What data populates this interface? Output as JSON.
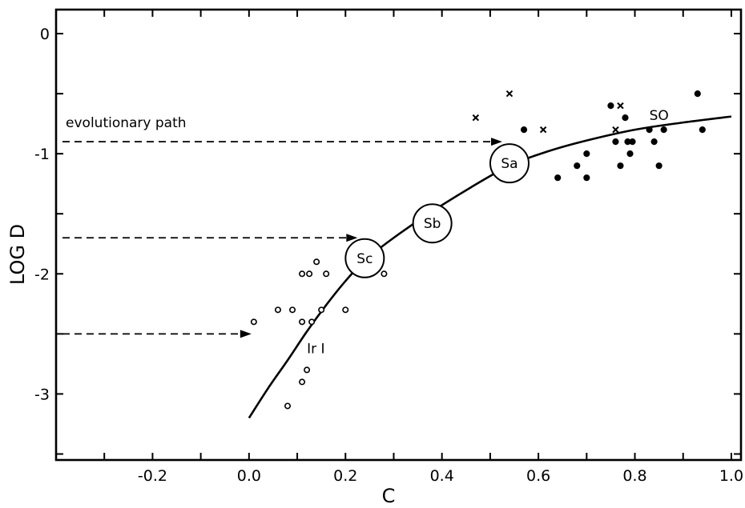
{
  "chart_data": {
    "type": "scatter",
    "xlabel": "C",
    "ylabel": "LOG D",
    "xlim": [
      -0.4,
      1.02
    ],
    "ylim": [
      -3.55,
      0.2
    ],
    "x_ticks": [
      -0.2,
      0.0,
      0.2,
      0.4,
      0.6,
      0.8,
      1.0
    ],
    "x_tick_labels": [
      "-0.2",
      "0.0",
      "0.2",
      "0.4",
      "0.6",
      "0.8",
      "1.0"
    ],
    "y_ticks": [
      0,
      -1,
      -2,
      -3
    ],
    "y_tick_labels": [
      "0",
      "-1",
      "-2",
      "-3"
    ],
    "grid": false,
    "series": [
      {
        "marker": "open-circle",
        "points": [
          {
            "x": 0.01,
            "y": -2.4
          },
          {
            "x": 0.06,
            "y": -2.3
          },
          {
            "x": 0.09,
            "y": -2.3
          },
          {
            "x": 0.11,
            "y": -2.0
          },
          {
            "x": 0.125,
            "y": -2.0
          },
          {
            "x": 0.14,
            "y": -1.9
          },
          {
            "x": 0.16,
            "y": -2.0
          },
          {
            "x": 0.11,
            "y": -2.4
          },
          {
            "x": 0.13,
            "y": -2.4
          },
          {
            "x": 0.15,
            "y": -2.3
          },
          {
            "x": 0.2,
            "y": -2.3
          },
          {
            "x": 0.28,
            "y": -2.0
          },
          {
            "x": 0.12,
            "y": -2.8
          },
          {
            "x": 0.11,
            "y": -2.9
          },
          {
            "x": 0.08,
            "y": -3.1
          }
        ]
      },
      {
        "marker": "filled-circle",
        "points": [
          {
            "x": 0.57,
            "y": -0.8
          },
          {
            "x": 0.64,
            "y": -1.2
          },
          {
            "x": 0.68,
            "y": -1.1
          },
          {
            "x": 0.7,
            "y": -1.0
          },
          {
            "x": 0.7,
            "y": -1.2
          },
          {
            "x": 0.75,
            "y": -0.6
          },
          {
            "x": 0.76,
            "y": -0.9
          },
          {
            "x": 0.77,
            "y": -1.1
          },
          {
            "x": 0.78,
            "y": -0.7
          },
          {
            "x": 0.785,
            "y": -0.9
          },
          {
            "x": 0.795,
            "y": -0.9
          },
          {
            "x": 0.79,
            "y": -1.0
          },
          {
            "x": 0.83,
            "y": -0.8
          },
          {
            "x": 0.84,
            "y": -0.9
          },
          {
            "x": 0.85,
            "y": -1.1
          },
          {
            "x": 0.86,
            "y": -0.8
          },
          {
            "x": 0.93,
            "y": -0.5
          },
          {
            "x": 0.94,
            "y": -0.8
          }
        ]
      },
      {
        "marker": "cross",
        "points": [
          {
            "x": 0.47,
            "y": -0.7
          },
          {
            "x": 0.54,
            "y": -0.5
          },
          {
            "x": 0.61,
            "y": -0.8
          },
          {
            "x": 0.77,
            "y": -0.6
          },
          {
            "x": 0.76,
            "y": -0.8
          }
        ]
      }
    ],
    "curve": [
      {
        "x": 0.0,
        "y": -3.2
      },
      {
        "x": 0.04,
        "y": -2.95
      },
      {
        "x": 0.08,
        "y": -2.72
      },
      {
        "x": 0.12,
        "y": -2.48
      },
      {
        "x": 0.16,
        "y": -2.26
      },
      {
        "x": 0.2,
        "y": -2.06
      },
      {
        "x": 0.24,
        "y": -1.89
      },
      {
        "x": 0.3,
        "y": -1.7
      },
      {
        "x": 0.38,
        "y": -1.48
      },
      {
        "x": 0.46,
        "y": -1.28
      },
      {
        "x": 0.54,
        "y": -1.1
      },
      {
        "x": 0.62,
        "y": -0.98
      },
      {
        "x": 0.7,
        "y": -0.89
      },
      {
        "x": 0.8,
        "y": -0.8
      },
      {
        "x": 0.9,
        "y": -0.74
      },
      {
        "x": 1.0,
        "y": -0.69
      }
    ],
    "stages": [
      {
        "label": "Sa",
        "x": 0.54,
        "y": -1.08
      },
      {
        "label": "Sb",
        "x": 0.38,
        "y": -1.58
      },
      {
        "label": "Sc",
        "x": 0.24,
        "y": -1.87
      }
    ],
    "arrows": [
      {
        "y": -0.9,
        "x_end": 0.525
      },
      {
        "y": -1.7,
        "x_end": 0.225
      },
      {
        "y": -2.5,
        "x_end": 0.005
      }
    ],
    "annotations": [
      {
        "text": "evolutionary path",
        "x": -0.38,
        "y": -0.78
      },
      {
        "text": "SO",
        "x": 0.83,
        "y": -0.72
      },
      {
        "text": "Ir I",
        "x": 0.12,
        "y": -2.66
      }
    ]
  }
}
